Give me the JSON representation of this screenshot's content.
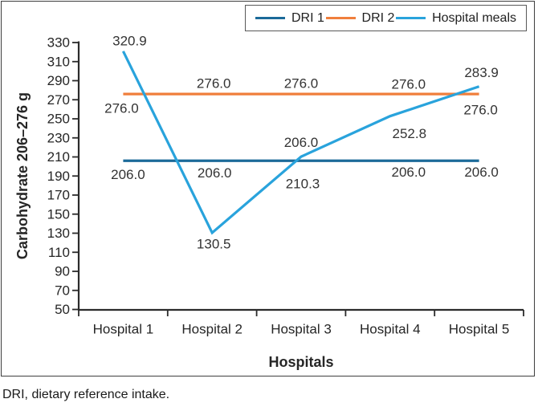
{
  "footer": {
    "note": "DRI, dietary reference intake."
  },
  "chart_data": {
    "type": "line",
    "title": "",
    "xlabel": "Hospitals",
    "ylabel": "Carbohydrate 206–276 g",
    "categories": [
      "Hospital 1",
      "Hospital 2",
      "Hospital 3",
      "Hospital 4",
      "Hospital 5"
    ],
    "ylim": [
      50,
      330
    ],
    "ytick_step": 20,
    "ytick_labels": [
      "50",
      "70",
      "90",
      "110",
      "130",
      "150",
      "170",
      "190",
      "210",
      "230",
      "250",
      "270",
      "290",
      "310",
      "330"
    ],
    "grid": false,
    "legend_position": "top-right",
    "axis_color": "#2b2b2b",
    "label_color": "#333333",
    "series": [
      {
        "name": "DRI 1",
        "color": "#1b6a99",
        "values": [
          206.0,
          206.0,
          206.0,
          206.0,
          206.0
        ],
        "labels": [
          "206.0",
          "206.0",
          "206.0",
          "206.0",
          "206.0"
        ],
        "label_offsets": [
          [
            6,
            17
          ],
          [
            3,
            15
          ],
          [
            0,
            -23
          ],
          [
            23,
            14
          ],
          [
            3,
            14
          ]
        ]
      },
      {
        "name": "DRI 2",
        "color": "#f07f3c",
        "values": [
          276.0,
          276.0,
          276.0,
          276.0,
          276.0
        ],
        "labels": [
          "276.0",
          "276.0",
          "276.0",
          "276.0",
          "276.0"
        ],
        "label_offsets": [
          [
            -2,
            18
          ],
          [
            2,
            -13
          ],
          [
            0,
            -13
          ],
          [
            23,
            -12
          ],
          [
            2,
            20
          ]
        ]
      },
      {
        "name": "Hospital meals",
        "color": "#29a3dc",
        "values": [
          320.9,
          130.5,
          210.3,
          252.8,
          283.9
        ],
        "labels": [
          "320.9",
          "130.5",
          "210.3",
          "252.8",
          "283.9"
        ],
        "label_offsets": [
          [
            8,
            -13
          ],
          [
            2,
            14
          ],
          [
            2,
            34
          ],
          [
            24,
            22
          ],
          [
            3,
            -17
          ]
        ]
      }
    ]
  }
}
